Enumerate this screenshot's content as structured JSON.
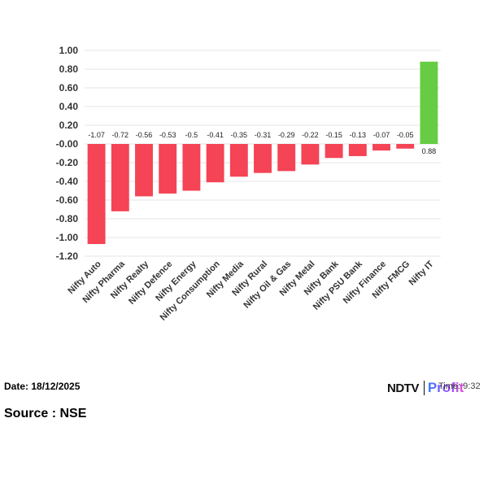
{
  "chart_data": {
    "type": "bar",
    "title": "",
    "xlabel": "",
    "ylabel": "",
    "categories": [
      "Nifty Auto",
      "Nifty Pharma",
      "Nifty Realty",
      "Nifty Defence",
      "Nifty Energy",
      "Nifty Consumption",
      "Nifty Media",
      "Nifty Rural",
      "Nifty Oil & Gas",
      "Nifty Metal",
      "Nifty Bank",
      "Nifty PSU Bank",
      "Nifty Finance",
      "Nifty FMCG",
      "Nifty IT"
    ],
    "values": [
      -1.07,
      -0.72,
      -0.56,
      -0.53,
      -0.5,
      -0.41,
      -0.35,
      -0.31,
      -0.29,
      -0.22,
      -0.15,
      -0.13,
      -0.07,
      -0.05,
      0.88
    ],
    "value_labels": [
      "-1.07",
      "-0.72",
      "-0.56",
      "-0.53",
      "-0.5",
      "-0.41",
      "-0.35",
      "-0.31",
      "-0.29",
      "-0.22",
      "-0.15",
      "-0.13",
      "-0.07",
      "-0.05",
      "0.88"
    ],
    "ylim": [
      -1.2,
      1.0
    ],
    "yticks": [
      1.0,
      0.8,
      0.6,
      0.4,
      0.2,
      0.0,
      -0.2,
      -0.4,
      -0.6,
      -0.8,
      -1.0,
      -1.2
    ],
    "ytick_labels": [
      "1.00",
      "0.80",
      "0.60",
      "0.40",
      "0.20",
      "-0.00",
      "-0.20",
      "-0.40",
      "-0.60",
      "-0.80",
      "-1.00",
      "-1.20"
    ],
    "grid": true,
    "colors": {
      "negative": "#f44455",
      "positive": "#66cc44",
      "grid": "#e6e6e6"
    }
  },
  "footer": {
    "date": "Date: 18/12/2025",
    "source": "Source : NSE",
    "brand_left": "NDTV",
    "brand_right": "Profit",
    "time_fragment": "Time: 9:32"
  }
}
